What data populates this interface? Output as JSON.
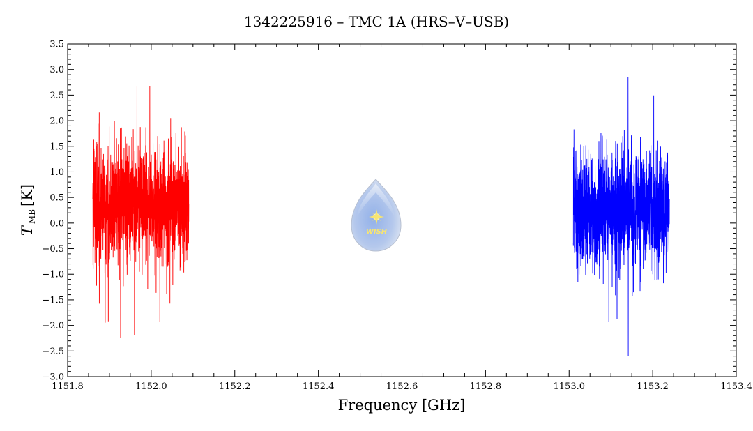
{
  "chart_data": {
    "type": "line",
    "title": "1342225916 – TMC 1A (HRS–V–USB)",
    "xlabel": "Frequency [GHz]",
    "ylabel_main": "T",
    "ylabel_sub": "MB",
    "ylabel_unit": "[K]",
    "xlim": [
      1151.8,
      1153.4
    ],
    "ylim": [
      -3.0,
      3.5
    ],
    "x_ticks": [
      "1151.8",
      "1152.0",
      "1152.2",
      "1152.4",
      "1152.6",
      "1152.8",
      "1153.0",
      "1153.2",
      "1153.4"
    ],
    "y_ticks": [
      "3.5",
      "3.0",
      "2.5",
      "2.0",
      "1.5",
      "1.0",
      "0.5",
      "0.0",
      "−0.5",
      "−1.0",
      "−1.5",
      "−2.0",
      "−2.5",
      "−3.0"
    ],
    "grid": false,
    "series": [
      {
        "color": "#ff0000",
        "x_range": [
          1151.86,
          1152.09
        ],
        "baseline": 0.35,
        "noise_rms": 0.55,
        "y_max": 2.68,
        "y_min": -2.25
      },
      {
        "color": "#0000ff",
        "x_range": [
          1153.01,
          1153.24
        ],
        "baseline": 0.25,
        "noise_rms": 0.55,
        "y_max": 2.85,
        "y_min": -2.6
      }
    ],
    "watermark": {
      "text": "WISH"
    }
  }
}
